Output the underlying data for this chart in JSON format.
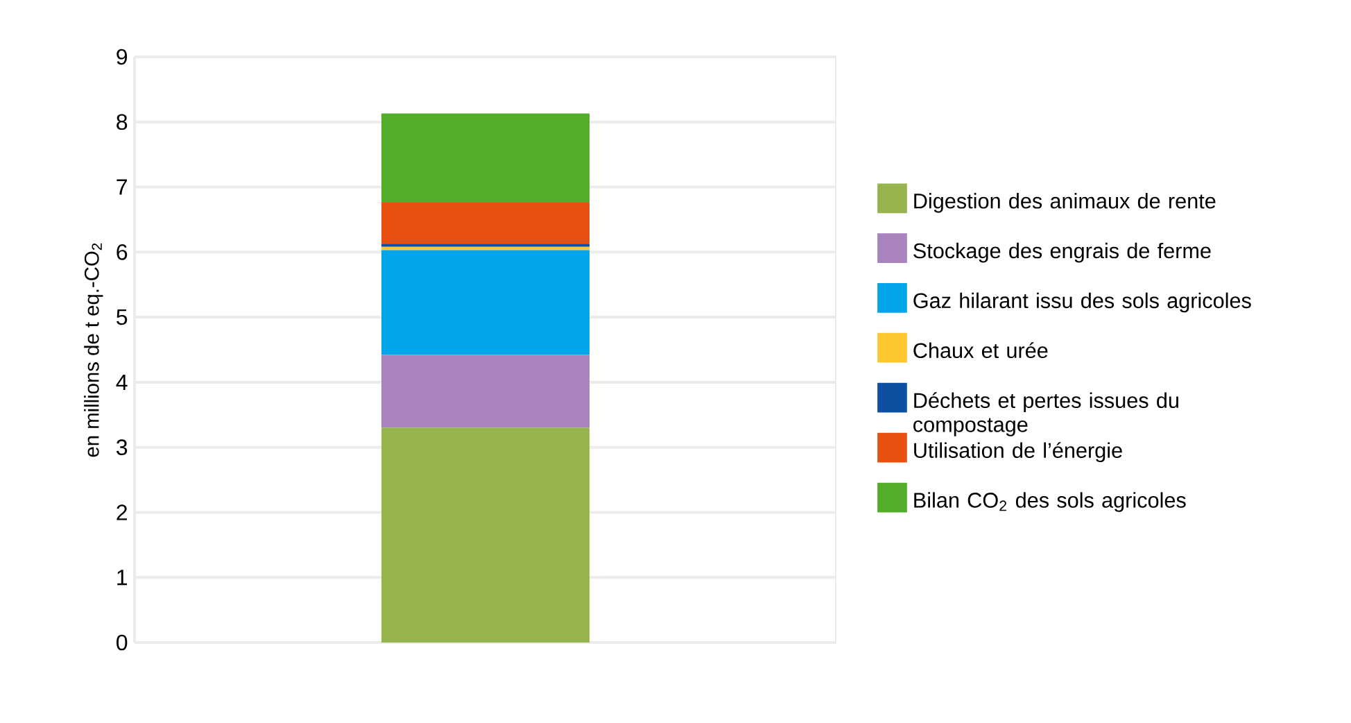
{
  "chart_data": {
    "type": "bar",
    "stacked": true,
    "ylabel": "en millions de t eq.-CO$_{2}$",
    "categories": [
      null
    ],
    "tick_labels": "y",
    "ylim": [
      0,
      9
    ],
    "yticks": [
      0,
      1,
      2,
      3,
      4,
      5,
      6,
      7,
      8,
      9
    ],
    "grid": "y",
    "legend": "right",
    "series": [
      {
        "name": "Digestion des animaux de rente",
        "color": "#95b44e",
        "values": [
          3.3
        ]
      },
      {
        "name": "Stockage des engrais de ferme",
        "color": "#a883bd",
        "values": [
          1.12
        ]
      },
      {
        "name": "Gaz hilarant issu des sols agricoles",
        "color": "#00a6e8",
        "values": [
          1.61
        ]
      },
      {
        "name": "Chaux et urée",
        "color": "#fcc72e",
        "values": [
          0.05
        ]
      },
      {
        "name": "Déchets et pertes issues du compostage",
        "color": "#0d4fa0",
        "values": [
          0.05
        ]
      },
      {
        "name": "Utilisation de l’énergie",
        "color": "#e85010",
        "values": [
          0.63
        ]
      },
      {
        "name": "Bilan CO$_{2}$ des sols agricoles",
        "color": "#52ad2a",
        "values": [
          1.37
        ]
      }
    ]
  }
}
